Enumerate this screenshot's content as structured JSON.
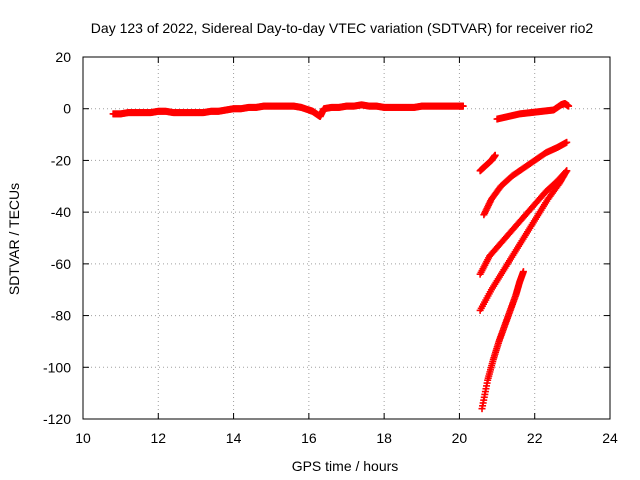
{
  "chart_data": {
    "type": "scatter",
    "title": "Day 123 of 2022, Sidereal Day-to-day VTEC variation (SDTVAR) for receiver rio2",
    "xlabel": "GPS time / hours",
    "ylabel": "SDTVAR / TECUs",
    "xlim": [
      10,
      24
    ],
    "ylim": [
      -120,
      20
    ],
    "x_ticks": [
      "10",
      "12",
      "14",
      "16",
      "18",
      "20",
      "22",
      "24"
    ],
    "y_ticks": [
      "20",
      "0",
      "-20",
      "-40",
      "-60",
      "-80",
      "-100",
      "-120"
    ],
    "grid": true,
    "marker_color": "#ff0000",
    "marker": "plus",
    "series": [
      {
        "x": [
          10.8,
          11.0,
          11.2,
          11.4,
          11.6,
          11.8,
          12.0,
          12.2,
          12.4,
          12.6,
          12.8,
          13.0,
          13.2,
          13.4,
          13.6,
          13.8,
          14.0,
          14.2,
          14.4,
          14.6,
          14.8,
          15.0,
          15.2,
          15.4,
          15.6,
          15.8,
          16.0,
          16.1,
          16.2,
          16.3,
          16.4,
          16.6,
          16.8,
          17.0,
          17.2,
          17.4,
          17.6,
          17.8,
          18.0,
          18.2,
          18.4,
          18.6,
          18.8,
          19.0,
          19.2,
          19.4,
          19.6,
          19.8,
          20.0,
          20.1
        ],
        "y": [
          -2,
          -2,
          -1.5,
          -1.5,
          -1.5,
          -1.5,
          -1,
          -1,
          -1.5,
          -1.5,
          -1.5,
          -1.5,
          -1.5,
          -1,
          -1,
          -0.5,
          0,
          0,
          0.5,
          0.5,
          1,
          1,
          1,
          1,
          1,
          0.5,
          -0.5,
          -1,
          -2,
          -3,
          0,
          0.5,
          0.5,
          1,
          1,
          1.5,
          1,
          1,
          0.5,
          0.5,
          0.5,
          0.5,
          0.5,
          1,
          1,
          1,
          1,
          1,
          1,
          1
        ]
      },
      {
        "x": [
          21.0,
          21.3,
          21.6,
          21.9,
          22.2,
          22.5,
          22.7,
          22.8,
          22.9
        ],
        "y": [
          -4,
          -3,
          -2,
          -1.5,
          -1,
          -0.5,
          1.5,
          2,
          1
        ]
      },
      {
        "x": [
          20.55,
          20.7,
          20.85,
          20.95
        ],
        "y": [
          -24,
          -22,
          -20,
          -18
        ]
      },
      {
        "x": [
          20.65,
          20.85,
          21.1,
          21.4,
          21.7,
          22.0,
          22.3,
          22.6,
          22.85
        ],
        "y": [
          -41,
          -35,
          -30,
          -26,
          -23,
          -20,
          -17,
          -15,
          -13
        ]
      },
      {
        "x": [
          20.55,
          20.8,
          21.1,
          21.4,
          21.7,
          22.0,
          22.3,
          22.6,
          22.85
        ],
        "y": [
          -64,
          -57,
          -52,
          -47,
          -42,
          -37,
          -32,
          -28,
          -24
        ]
      },
      {
        "x": [
          20.55,
          20.85,
          21.15,
          21.45,
          21.75,
          22.05,
          22.35,
          22.65,
          22.85
        ],
        "y": [
          -78,
          -70,
          -63,
          -56,
          -49,
          -42,
          -35,
          -29,
          -24
        ]
      },
      {
        "x": [
          20.6,
          20.75,
          20.9,
          21.05,
          21.2,
          21.35,
          21.5,
          21.6,
          21.7
        ],
        "y": [
          -116,
          -105,
          -97,
          -90,
          -84,
          -78,
          -72,
          -67,
          -63
        ]
      }
    ]
  }
}
